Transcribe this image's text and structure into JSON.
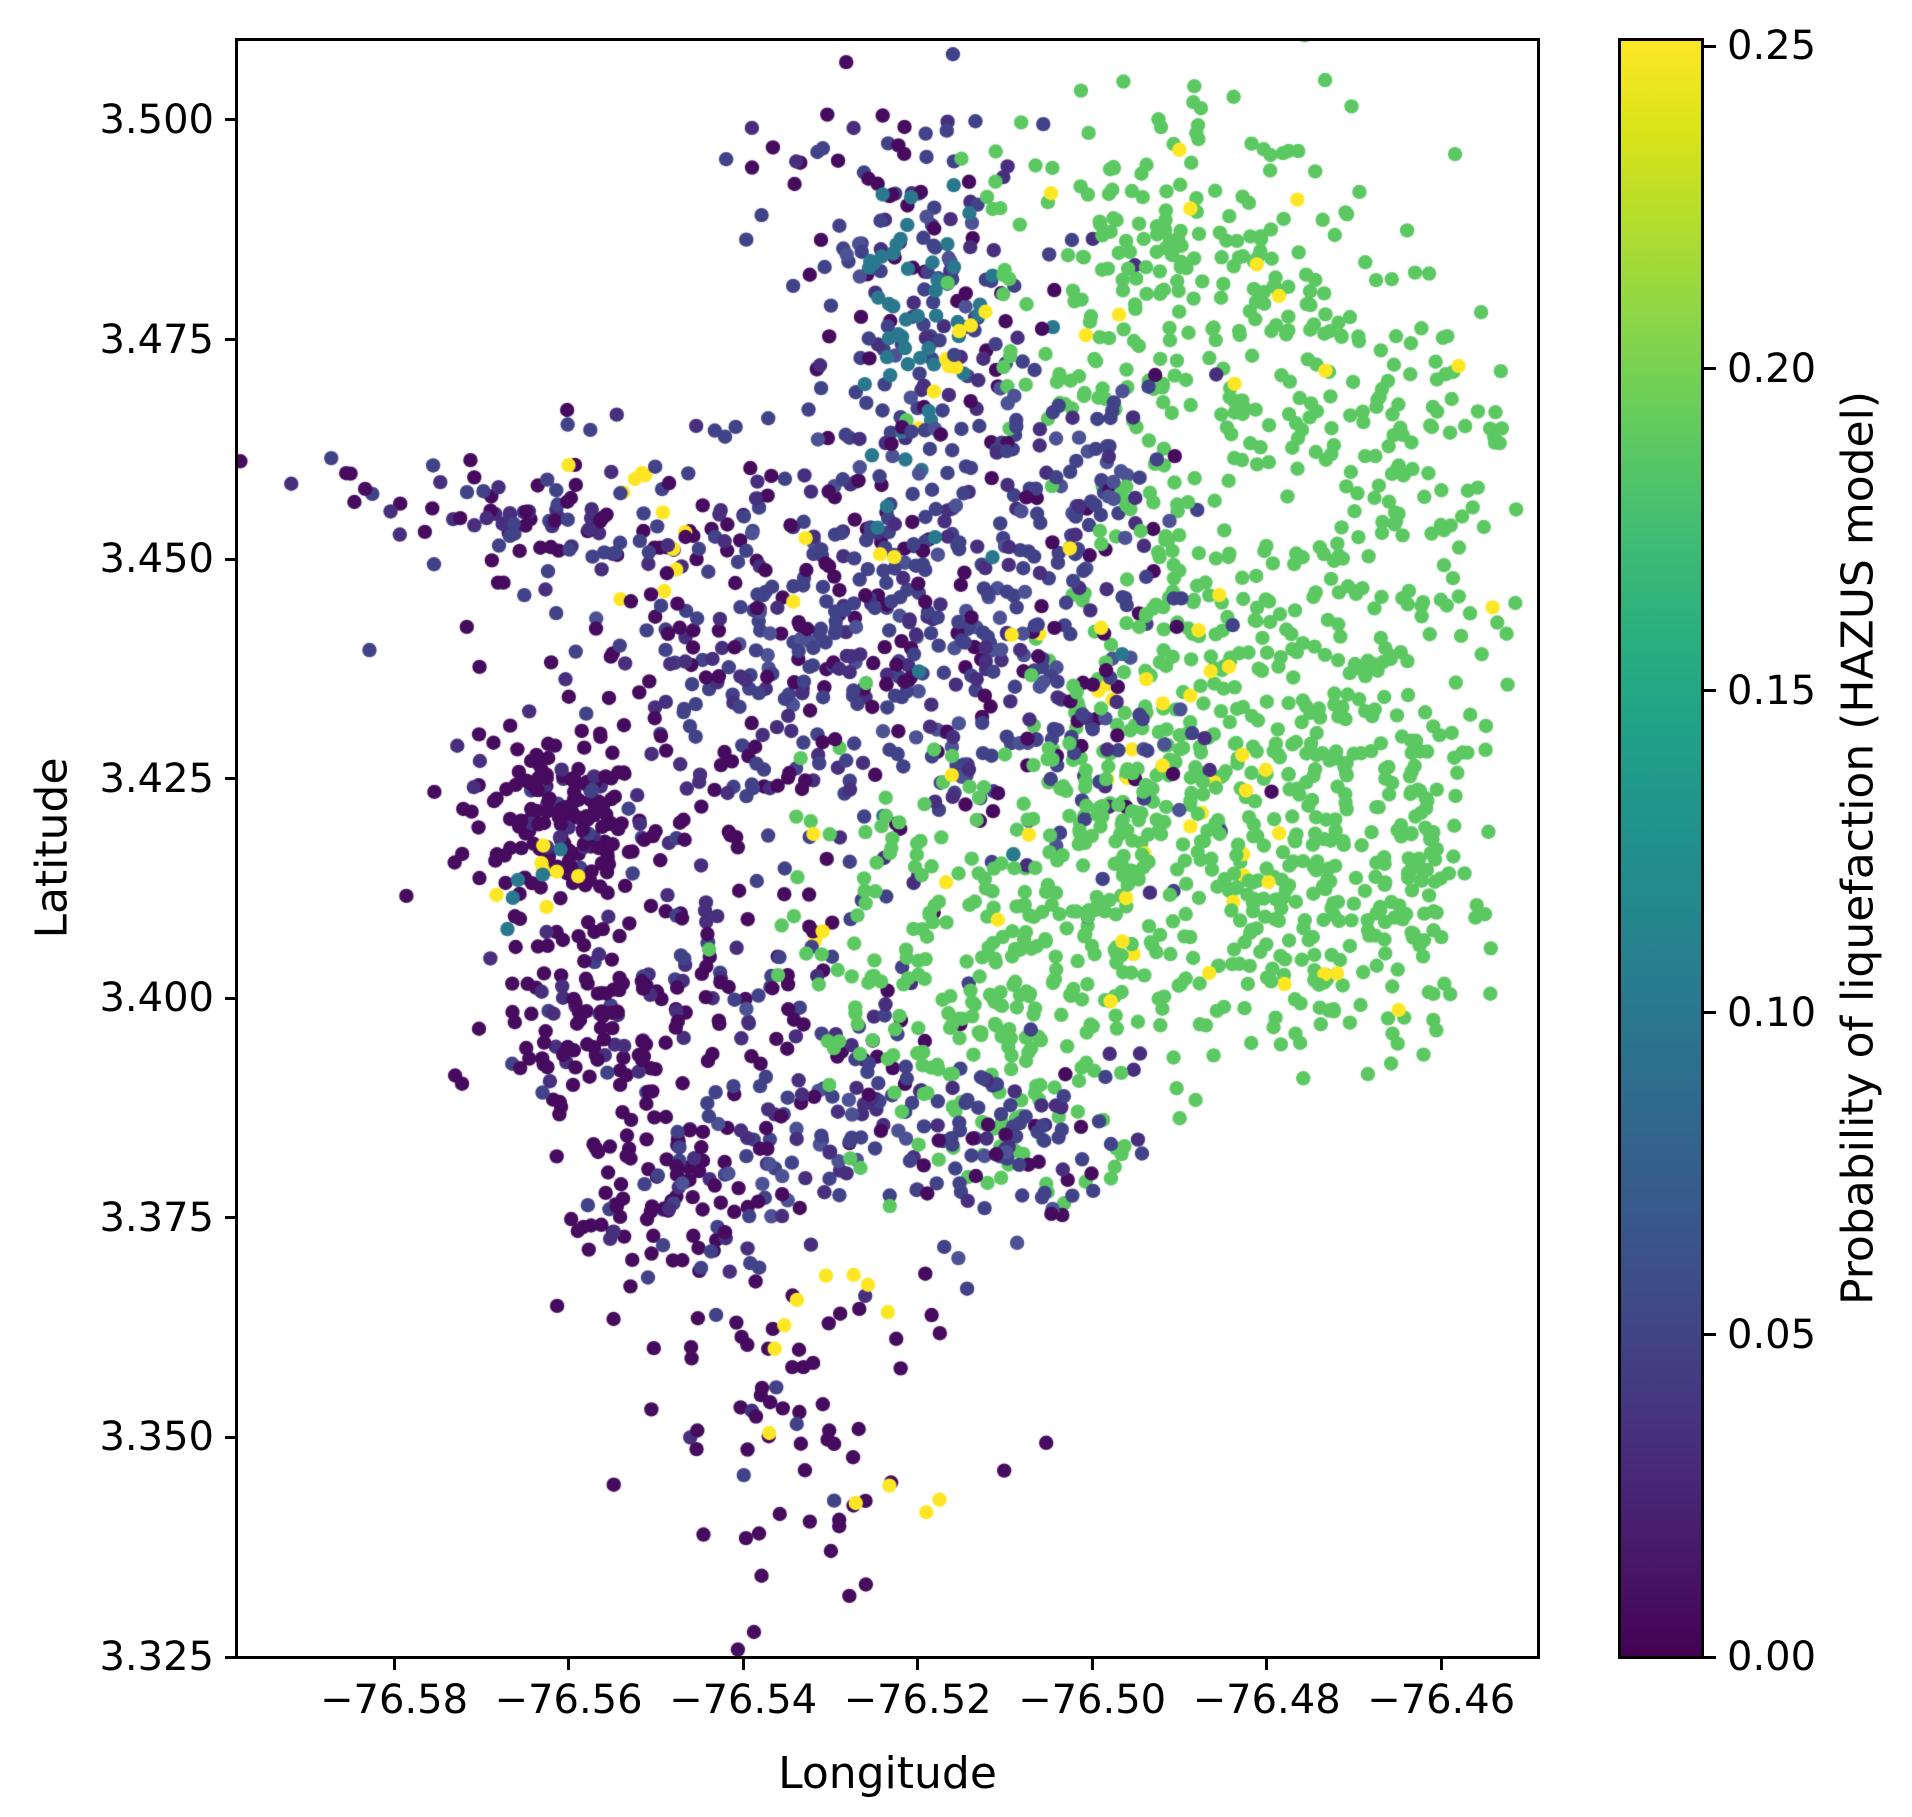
{
  "figure": {
    "background": "#ffffff"
  },
  "axes": {
    "xlabel": "Longitude",
    "ylabel": "Latitude",
    "xlim": [
      -76.598,
      -76.4489
    ],
    "ylim": [
      3.325,
      3.5091
    ],
    "xticks": {
      "values": [
        -76.58,
        -76.56,
        -76.54,
        -76.52,
        -76.5,
        -76.48,
        -76.46
      ],
      "labels": [
        "−76.58",
        "−76.56",
        "−76.54",
        "−76.52",
        "−76.50",
        "−76.48",
        "−76.46"
      ]
    },
    "yticks": {
      "values": [
        3.5,
        3.475,
        3.45,
        3.425,
        3.4,
        3.375,
        3.35,
        3.325
      ],
      "labels": [
        "3.500",
        "3.475",
        "3.450",
        "3.425",
        "3.400",
        "3.375",
        "3.350",
        "3.325"
      ]
    }
  },
  "colorbar": {
    "label": "Probability of liquefaction (HAZUS model)",
    "vmin": 0.0,
    "vmax": 0.251,
    "ticks": {
      "values": [
        0.0,
        0.05,
        0.1,
        0.15,
        0.2,
        0.25
      ],
      "labels": [
        "0.00",
        "0.05",
        "0.10",
        "0.15",
        "0.20",
        "0.25"
      ]
    },
    "gradient": [
      "#440154",
      "#481567",
      "#482677",
      "#453781",
      "#404788",
      "#39568c",
      "#33638d",
      "#2d708e",
      "#287d8e",
      "#238a8d",
      "#1f968b",
      "#20a387",
      "#29af7f",
      "#3cbb75",
      "#55c667",
      "#73d055",
      "#95d840",
      "#b8de29",
      "#dce319",
      "#fde725"
    ]
  },
  "chart_data": {
    "type": "scatter",
    "title": "",
    "xlabel": "Longitude",
    "ylabel": "Latitude",
    "value_label": "Probability of liquefaction (HAZUS model)",
    "marker_radius_px": 7.2,
    "seed": 20240613,
    "value_classes": {
      "p01": {
        "value": 0.01,
        "color": "#460b5e"
      },
      "p03": {
        "value": 0.03,
        "color": "#472f7e"
      },
      "p05": {
        "value": 0.05,
        "color": "#414288"
      },
      "p06": {
        "value": 0.06,
        "color": "#4c5294"
      },
      "p10": {
        "value": 0.1,
        "color": "#2a788e"
      },
      "p20": {
        "value": 0.2,
        "color": "#5cc862"
      },
      "p25": {
        "value": 0.25,
        "color": "#fde725"
      }
    },
    "mixes": {
      "darkmix": {
        "p01": 0.5,
        "p03": 0.2,
        "p05": 0.3
      },
      "darkheavy": {
        "p01": 0.86,
        "p03": 0.09,
        "p05": 0.05
      },
      "navymix": {
        "p05": 0.5,
        "p03": 0.18,
        "p01": 0.2,
        "p06": 0.12
      },
      "teal": {
        "p10": 1
      },
      "green": {
        "p20": 1
      },
      "yellow": {
        "p25": 1
      }
    },
    "clusters": [
      [
        "arm-core",
        -76.558,
        3.4535,
        0.012,
        0.0028,
        -8,
        95,
        "darkmix"
      ],
      [
        "arm-tip",
        -76.584,
        3.459,
        0.0016,
        0.0014,
        0,
        5,
        "darkmix"
      ],
      [
        "arm-yellow-blob",
        -76.5512,
        3.459,
        0.0013,
        0.0012,
        0,
        4,
        "yellow"
      ],
      [
        "arm-yellow-right",
        -76.5475,
        3.451,
        0.003,
        0.0022,
        0,
        6,
        "yellow"
      ],
      [
        "left-sparse",
        -76.553,
        3.445,
        0.011,
        0.011,
        0,
        45,
        "darkmix"
      ],
      [
        "stem",
        -76.519,
        3.4795,
        0.0072,
        0.0105,
        0,
        150,
        "navymix"
      ],
      [
        "stem-top",
        -76.528,
        3.4935,
        0.0055,
        0.0045,
        0,
        16,
        "darkmix"
      ],
      [
        "teal-cluster",
        -76.5197,
        3.477,
        0.0042,
        0.0085,
        0,
        48,
        "teal"
      ],
      [
        "stem-yellow-streak",
        -76.5153,
        3.4732,
        0.0048,
        0.0009,
        68,
        8,
        "yellow"
      ],
      [
        "green-top",
        -76.4888,
        3.4806,
        0.0125,
        0.011,
        0,
        290,
        "green"
      ],
      [
        "green-top-yellow",
        -76.489,
        3.482,
        0.0135,
        0.011,
        0,
        9,
        "yellow"
      ],
      [
        "navy-topright",
        -76.4996,
        3.4595,
        0.006,
        0.0075,
        0,
        65,
        "navymix"
      ],
      [
        "green-right-upper",
        -76.4665,
        3.456,
        0.008,
        0.0115,
        0,
        130,
        "green"
      ],
      [
        "green-connector",
        -76.492,
        3.45,
        0.006,
        0.006,
        0,
        50,
        "green"
      ],
      [
        "lobe-main",
        -76.481,
        3.425,
        0.0125,
        0.012,
        0,
        330,
        "green"
      ],
      [
        "lobe-yellow",
        -76.487,
        3.423,
        0.0075,
        0.01,
        0,
        30,
        "yellow"
      ],
      [
        "lobe-right-col",
        -76.463,
        3.418,
        0.0024,
        0.01,
        0,
        70,
        "green"
      ],
      [
        "lobe-hook",
        -76.4727,
        3.407,
        0.0055,
        0.0058,
        0,
        80,
        "green"
      ],
      [
        "hook-yellow",
        -76.4727,
        3.404,
        0.004,
        0.003,
        0,
        4,
        "yellow"
      ],
      [
        "central-navy-1",
        -76.5254,
        3.4499,
        0.012,
        0.0095,
        0,
        210,
        "navymix"
      ],
      [
        "central-navy-2",
        -76.508,
        3.4355,
        0.01,
        0.011,
        0,
        230,
        "navymix"
      ],
      [
        "central-dark",
        -76.5385,
        3.4317,
        0.01,
        0.01,
        0,
        150,
        "darkmix"
      ],
      [
        "central-teal-sprinkle",
        -76.517,
        3.442,
        0.012,
        0.012,
        0,
        7,
        "teal"
      ],
      [
        "central-yellow-sprinkle",
        -76.524,
        3.44,
        0.015,
        0.013,
        0,
        8,
        "yellow"
      ],
      [
        "dense-dark",
        -76.5604,
        3.4204,
        0.0055,
        0.0052,
        0,
        180,
        "darkheavy"
      ],
      [
        "dense-dark-yellow",
        -76.5633,
        3.4136,
        0.004,
        0.0018,
        0,
        7,
        "yellow"
      ],
      [
        "dense-dark-teal",
        -76.5656,
        3.4128,
        0.0026,
        0.002,
        0,
        5,
        "teal"
      ],
      [
        "below-center",
        -76.542,
        3.401,
        0.0115,
        0.0085,
        0,
        120,
        "darkmix"
      ],
      [
        "lowleft-1",
        -76.5575,
        3.3964,
        0.0052,
        0.0058,
        0,
        95,
        "darkheavy"
      ],
      [
        "lowleft-2",
        -76.5495,
        3.378,
        0.0058,
        0.0055,
        0,
        80,
        "darkheavy"
      ],
      [
        "lowleft-2-fringe",
        -76.543,
        3.377,
        0.004,
        0.0045,
        0,
        25,
        "navymix"
      ],
      [
        "navy-midlow",
        -76.528,
        3.3885,
        0.0065,
        0.0062,
        0,
        85,
        "navymix"
      ],
      [
        "green-bottom",
        -76.506,
        3.4075,
        0.0135,
        0.0115,
        0,
        330,
        "green"
      ],
      [
        "green-bottom-yellow",
        -76.508,
        3.406,
        0.011,
        0.009,
        0,
        9,
        "yellow"
      ],
      [
        "green-bottom-arm",
        -76.5131,
        3.3922,
        0.0055,
        0.0065,
        0,
        55,
        "green"
      ],
      [
        "green-bottom-sparse",
        -76.509,
        3.3815,
        0.0045,
        0.0028,
        0,
        8,
        "green"
      ],
      [
        "green-pair-low",
        -76.499,
        3.3805,
        0.0012,
        0.001,
        0,
        3,
        "green"
      ],
      [
        "navy-lowright",
        -76.508,
        3.3838,
        0.0062,
        0.0055,
        0,
        85,
        "navymix"
      ],
      [
        "tail",
        -76.5346,
        3.354,
        0.009,
        0.014,
        0,
        90,
        "darkheavy"
      ],
      [
        "tail-yellow-1",
        -76.531,
        3.3665,
        0.0045,
        0.003,
        0,
        7,
        "yellow"
      ],
      [
        "tail-yellow-2",
        -76.526,
        3.343,
        0.004,
        0.0028,
        0,
        3,
        "yellow"
      ]
    ],
    "extra_points": [
      [
        -76.5872,
        3.4615,
        "p05"
      ],
      [
        -76.56,
        3.4607,
        "p25"
      ],
      [
        -76.524,
        3.5005,
        "p01"
      ],
      [
        -76.5215,
        3.4992,
        "p01"
      ],
      [
        -76.49,
        3.4966,
        "p25"
      ],
      [
        -76.458,
        3.472,
        "p25"
      ],
      [
        -76.4541,
        3.4445,
        "p25"
      ],
      [
        -76.4515,
        3.445,
        "p20"
      ],
      [
        -76.4525,
        3.4415,
        "p20"
      ],
      [
        -76.518,
        3.4525,
        "p10"
      ],
      [
        -76.5235,
        3.456,
        "p10"
      ],
      [
        -76.537,
        3.3505,
        "p25"
      ],
      [
        -76.519,
        3.3415,
        "p25"
      ]
    ]
  }
}
